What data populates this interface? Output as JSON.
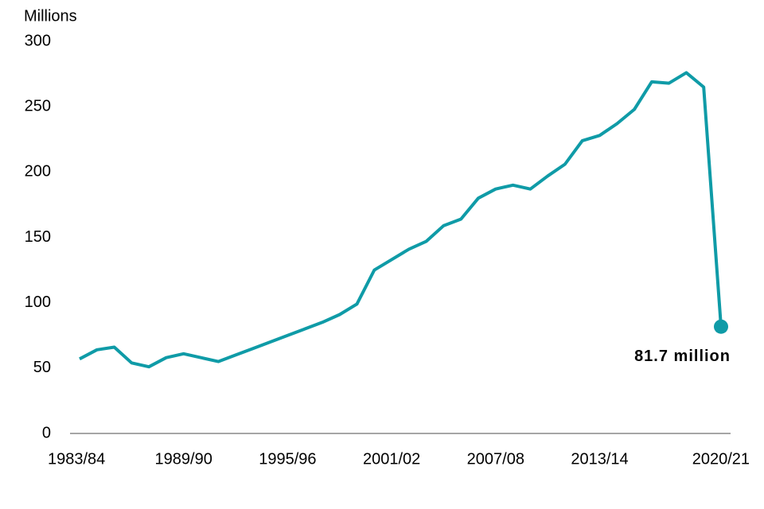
{
  "chart_data": {
    "type": "line",
    "y_label": "Millions",
    "categories": [
      "1983/84",
      null,
      null,
      null,
      null,
      null,
      "1989/90",
      null,
      null,
      null,
      null,
      null,
      "1995/96",
      null,
      null,
      null,
      null,
      null,
      "2001/02",
      null,
      null,
      null,
      null,
      null,
      "2007/08",
      null,
      null,
      null,
      null,
      null,
      "2013/14",
      null,
      null,
      null,
      null,
      null,
      null,
      "2020/21"
    ],
    "values": [
      57,
      64,
      66,
      54,
      51,
      58,
      61,
      58,
      55,
      60,
      65,
      70,
      75,
      80,
      85,
      91,
      99,
      125,
      133,
      141,
      147,
      159,
      164,
      180,
      187,
      190,
      187,
      197,
      206,
      224,
      228,
      237,
      248,
      269,
      268,
      276,
      265,
      81.7
    ],
    "value_labels": [
      null,
      null,
      null,
      null,
      null,
      null,
      null,
      null,
      null,
      null,
      null,
      null,
      null,
      null,
      null,
      null,
      null,
      null,
      null,
      null,
      null,
      null,
      null,
      null,
      null,
      null,
      null,
      null,
      null,
      null,
      null,
      null,
      null,
      null,
      null,
      null,
      null,
      "81.7 million"
    ],
    "color": "#0f9ba7",
    "ylim": [
      0,
      300
    ],
    "yticks": [
      0,
      50,
      100,
      150,
      200,
      250,
      300
    ],
    "grid": false
  }
}
